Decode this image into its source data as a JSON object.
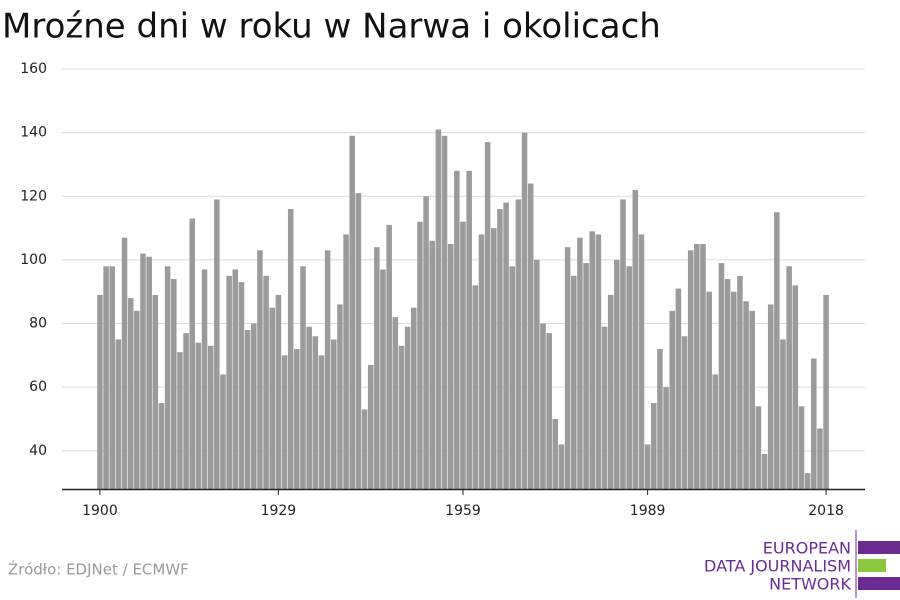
{
  "chart_data": {
    "type": "bar",
    "title": "Mroźne dni w roku w Narwa i okolicach",
    "x": [
      1900,
      1901,
      1902,
      1903,
      1904,
      1905,
      1906,
      1907,
      1908,
      1909,
      1910,
      1911,
      1912,
      1913,
      1914,
      1915,
      1916,
      1917,
      1918,
      1919,
      1920,
      1921,
      1922,
      1923,
      1924,
      1925,
      1926,
      1927,
      1928,
      1929,
      1930,
      1931,
      1932,
      1933,
      1934,
      1935,
      1936,
      1937,
      1938,
      1939,
      1940,
      1941,
      1942,
      1943,
      1944,
      1945,
      1946,
      1947,
      1948,
      1949,
      1950,
      1951,
      1952,
      1953,
      1954,
      1955,
      1956,
      1957,
      1958,
      1959,
      1960,
      1961,
      1962,
      1963,
      1964,
      1965,
      1966,
      1967,
      1968,
      1969,
      1970,
      1971,
      1972,
      1973,
      1974,
      1975,
      1976,
      1977,
      1978,
      1979,
      1980,
      1981,
      1982,
      1983,
      1984,
      1985,
      1986,
      1987,
      1988,
      1989,
      1990,
      1991,
      1992,
      1993,
      1994,
      1995,
      1996,
      1997,
      1998,
      1999,
      2000,
      2001,
      2002,
      2003,
      2004,
      2005,
      2006,
      2007,
      2008,
      2009,
      2010,
      2011,
      2012,
      2013,
      2014,
      2015,
      2016,
      2017,
      2018
    ],
    "values": [
      89,
      98,
      98,
      75,
      107,
      88,
      84,
      102,
      101,
      89,
      55,
      98,
      94,
      71,
      77,
      113,
      74,
      97,
      73,
      119,
      64,
      95,
      97,
      93,
      78,
      80,
      103,
      95,
      85,
      89,
      70,
      116,
      72,
      98,
      79,
      76,
      70,
      103,
      75,
      86,
      108,
      139,
      121,
      53,
      67,
      104,
      97,
      111,
      82,
      73,
      79,
      85,
      112,
      120,
      106,
      141,
      139,
      105,
      128,
      112,
      128,
      92,
      108,
      137,
      110,
      116,
      118,
      98,
      119,
      140,
      124,
      100,
      80,
      77,
      50,
      42,
      104,
      95,
      107,
      99,
      109,
      108,
      79,
      89,
      100,
      119,
      98,
      122,
      108,
      42,
      55,
      72,
      60,
      84,
      91,
      76,
      103,
      105,
      105,
      90,
      64,
      99,
      94,
      90,
      95,
      87,
      84,
      54,
      39,
      86,
      115,
      75,
      98,
      92,
      54,
      33,
      69,
      47,
      89
    ],
    "color": "#9b9b9b",
    "xlim": [
      1894,
      2024
    ],
    "xticks": [
      1900,
      1929,
      1959,
      1989,
      2018
    ],
    "ylim": [
      28,
      160
    ],
    "yticks": [
      40,
      60,
      80,
      100,
      120,
      140,
      160
    ],
    "grid": true
  },
  "source": "Źródło: EDJNet / ECMWF",
  "logo": [
    "EUROPEAN",
    "DATA JOURNALISM",
    "NETWORK"
  ]
}
